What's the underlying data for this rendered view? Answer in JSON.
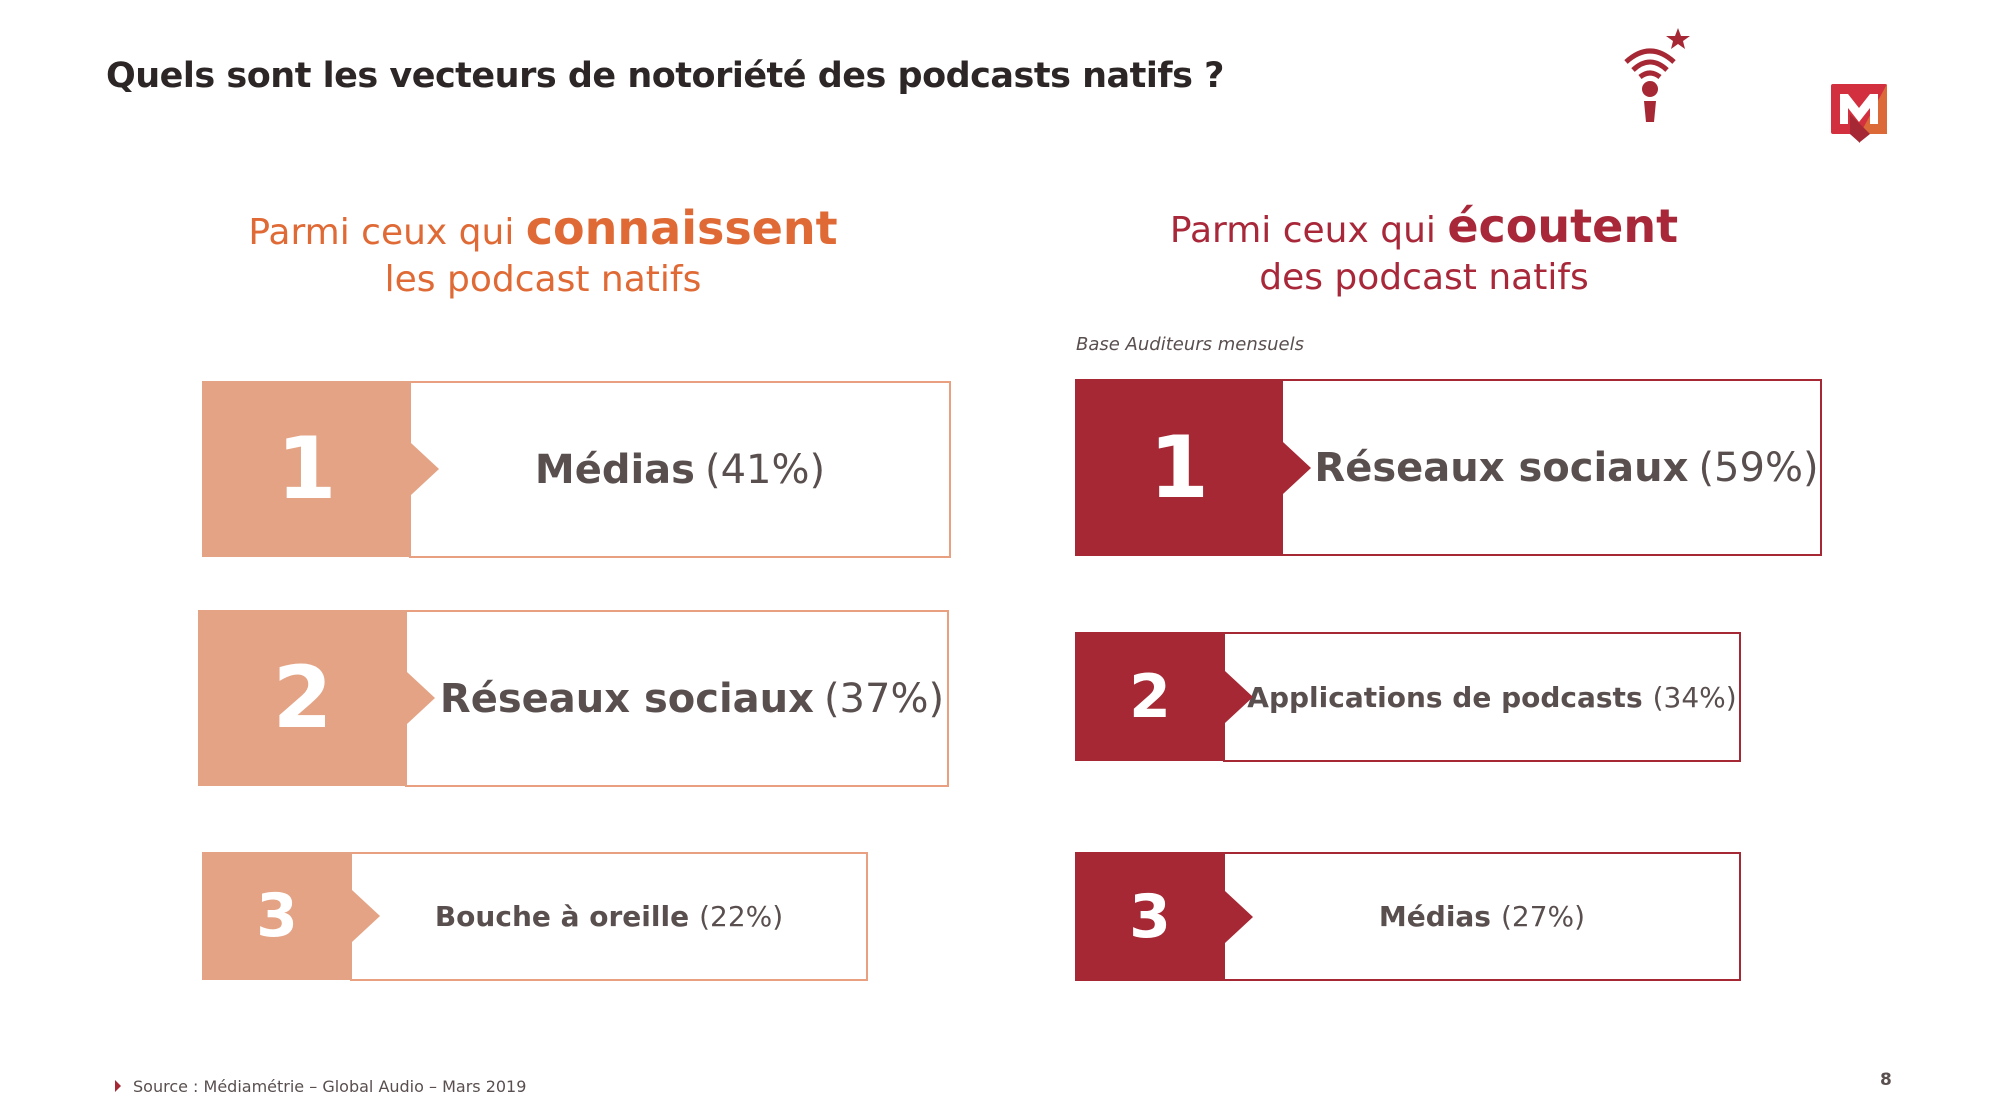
{
  "title": "Quels sont les vecteurs de notoriété des podcasts natifs ?",
  "left": {
    "heading_pre": "Parmi ceux qui ",
    "heading_bold": "connaissent",
    "heading_line2": "les podcast natifs",
    "items": [
      {
        "rank": "1",
        "label": "Médias",
        "pct": "(41%)"
      },
      {
        "rank": "2",
        "label": "Réseaux sociaux",
        "pct": "(37%)"
      },
      {
        "rank": "3",
        "label": "Bouche à oreille",
        "pct": "(22%)"
      }
    ]
  },
  "right": {
    "heading_pre": "Parmi ceux qui ",
    "heading_bold": "écoutent",
    "heading_line2": "des podcast natifs",
    "base": "Base Auditeurs mensuels",
    "items": [
      {
        "rank": "1",
        "label": "Réseaux sociaux",
        "pct": "(59%)"
      },
      {
        "rank": "2",
        "label": "Applications de podcasts",
        "pct": "(34%)"
      },
      {
        "rank": "3",
        "label": "Médias",
        "pct": "(27%)"
      }
    ]
  },
  "footer": {
    "source": "Source : Médiamétrie – Global Audio – Mars 2019",
    "page": "8"
  },
  "logos": {
    "podcast_icon": "microphone-wifi-star",
    "brand": "M"
  },
  "colors": {
    "left_accent": "#e4a385",
    "left_heading": "#e06a35",
    "right_accent": "#a52834"
  }
}
